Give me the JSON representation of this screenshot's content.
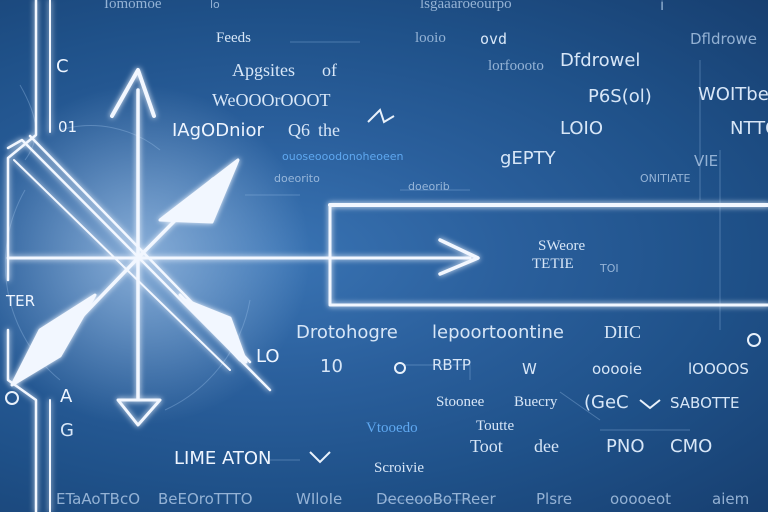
{
  "background_texts": [
    "Iomomoe",
    "lo",
    "lsgaaaroeourpo",
    "i",
    "Feeds",
    "looio",
    "ovd",
    "Dfldrowe",
    "C",
    "Apgsites",
    "of",
    "lorfoooto",
    "Dfdrowel",
    "WeOOOrOOOT",
    "P6S(ol)",
    "WOITbeD",
    "01",
    "IAgODnior",
    "Q6",
    "the",
    "LOIO",
    "NTTO",
    "ouoseooodonoheoeen",
    "gEPTY",
    "VIE",
    "doeorito",
    "doeorib",
    "ONITIATE",
    "TER",
    "SWeore",
    "TETIE",
    "TOI",
    "Drotohogre",
    "lepoortoontine",
    "DIIC",
    "LO",
    "10",
    "RBTP",
    "W",
    "ooooie",
    "lOOOOS",
    "A",
    "Stoonee",
    "Buecry",
    "(GeC",
    "SABOTTE",
    "G",
    "Vtooedo",
    "Toutte",
    "LIME ATON",
    "Toot",
    "dee",
    "PNO",
    "CMO",
    "Scroivie",
    "ETaAoTBcO",
    "BeEOroTTTO",
    "WIloIe",
    "DeceooBoTReer",
    "Plsre",
    "ooooeot",
    "aiem"
  ],
  "colors": {
    "background": "#1f5189",
    "line": "#f2f7ff",
    "glow": "#9ccbff",
    "text": "#d7e6f7",
    "accent_text": "#5fa8f0"
  }
}
